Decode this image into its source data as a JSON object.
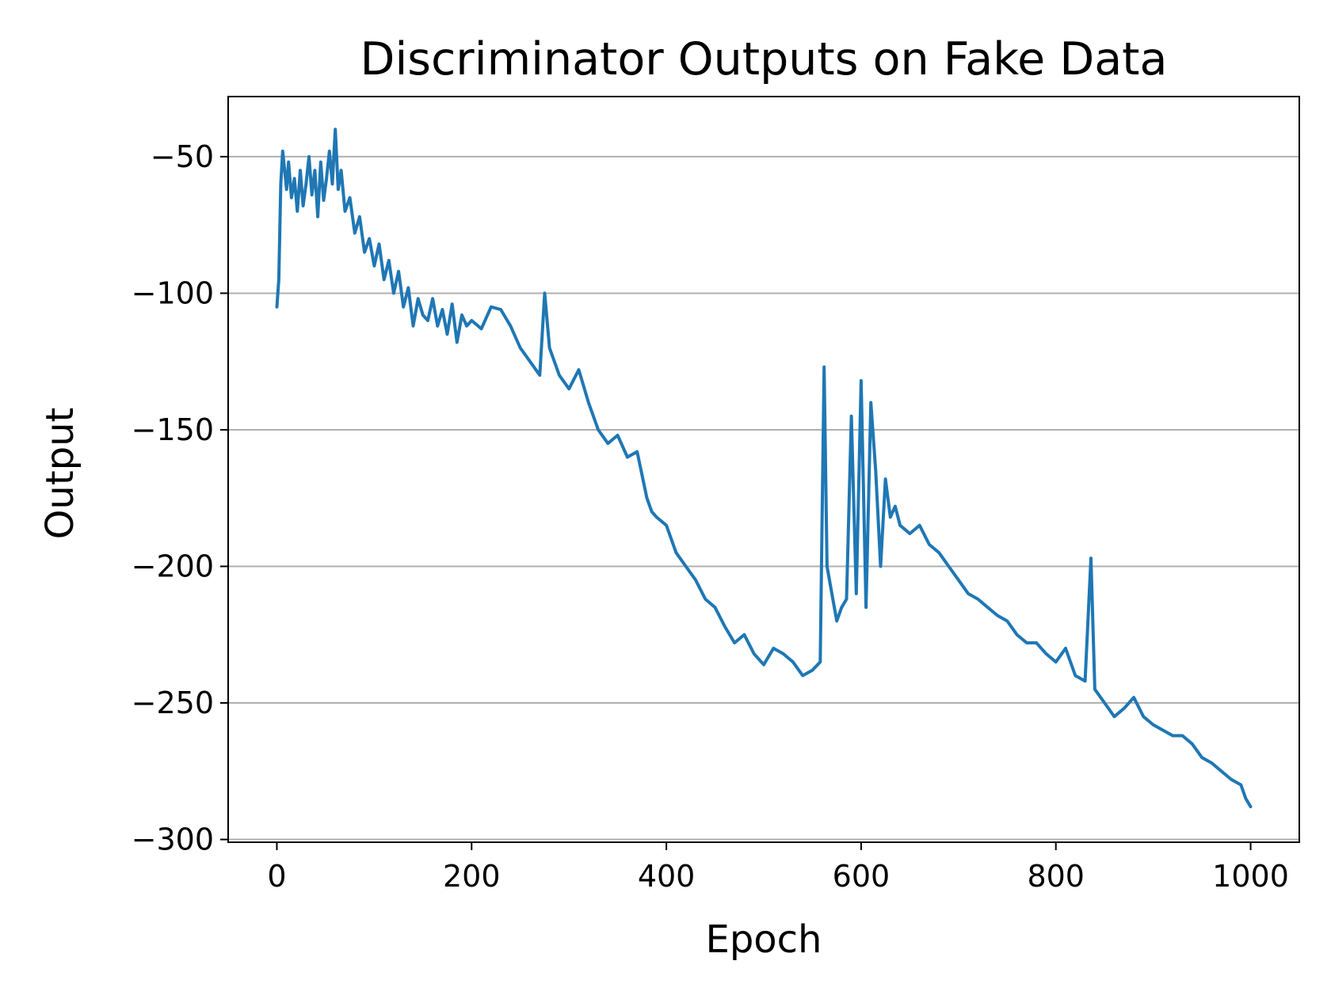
{
  "chart_data": {
    "type": "line",
    "title": "Discriminator Outputs on Fake Data",
    "xlabel": "Epoch",
    "ylabel": "Output",
    "xlim": [
      -50,
      1050
    ],
    "ylim": [
      -301,
      -28
    ],
    "xticks": [
      0,
      200,
      400,
      600,
      800,
      1000
    ],
    "xtick_labels": [
      "0",
      "200",
      "400",
      "600",
      "800",
      "1000"
    ],
    "yticks": [
      -50,
      -100,
      -150,
      -200,
      -250,
      -300
    ],
    "ytick_labels": [
      "−50",
      "−100",
      "−150",
      "−200",
      "−250",
      "−300"
    ],
    "grid": "y",
    "legend": "none",
    "colors": {
      "line": "#1f77b4",
      "grid": "#b0b0b0"
    },
    "series": [
      {
        "x": [
          0,
          2,
          4,
          6,
          8,
          10,
          12,
          15,
          18,
          21,
          24,
          27,
          30,
          33,
          36,
          39,
          42,
          45,
          48,
          51,
          54,
          57,
          60,
          63,
          66,
          70,
          75,
          80,
          85,
          90,
          95,
          100,
          105,
          110,
          115,
          120,
          125,
          130,
          135,
          140,
          145,
          150,
          155,
          160,
          165,
          170,
          175,
          180,
          185,
          190,
          195,
          200,
          210,
          220,
          230,
          240,
          250,
          260,
          270,
          275,
          280,
          290,
          300,
          310,
          320,
          330,
          340,
          350,
          360,
          370,
          380,
          385,
          390,
          400,
          410,
          420,
          430,
          440,
          450,
          460,
          470,
          480,
          490,
          500,
          510,
          520,
          530,
          540,
          550,
          558,
          562,
          565,
          570,
          575,
          580,
          585,
          590,
          595,
          600,
          605,
          610,
          615,
          620,
          625,
          630,
          635,
          640,
          650,
          660,
          670,
          680,
          690,
          700,
          710,
          720,
          730,
          740,
          750,
          760,
          770,
          780,
          790,
          800,
          810,
          820,
          830,
          836,
          840,
          850,
          860,
          870,
          880,
          890,
          900,
          910,
          920,
          930,
          940,
          950,
          960,
          970,
          980,
          990,
          995,
          1000
        ],
        "y": [
          -105,
          -95,
          -60,
          -48,
          -55,
          -62,
          -52,
          -65,
          -58,
          -70,
          -55,
          -68,
          -60,
          -50,
          -64,
          -55,
          -72,
          -52,
          -66,
          -58,
          -48,
          -60,
          -40,
          -62,
          -55,
          -70,
          -65,
          -78,
          -72,
          -85,
          -80,
          -90,
          -82,
          -95,
          -88,
          -100,
          -92,
          -105,
          -98,
          -112,
          -102,
          -108,
          -110,
          -102,
          -112,
          -106,
          -115,
          -104,
          -118,
          -108,
          -112,
          -110,
          -113,
          -105,
          -106,
          -112,
          -120,
          -125,
          -130,
          -100,
          -120,
          -130,
          -135,
          -128,
          -140,
          -150,
          -155,
          -152,
          -160,
          -158,
          -175,
          -180,
          -182,
          -185,
          -195,
          -200,
          -205,
          -212,
          -215,
          -222,
          -228,
          -225,
          -232,
          -236,
          -230,
          -232,
          -235,
          -240,
          -238,
          -235,
          -127,
          -200,
          -210,
          -220,
          -215,
          -212,
          -145,
          -210,
          -132,
          -215,
          -140,
          -165,
          -200,
          -168,
          -182,
          -178,
          -185,
          -188,
          -185,
          -192,
          -195,
          -200,
          -205,
          -210,
          -212,
          -215,
          -218,
          -220,
          -225,
          -228,
          -228,
          -232,
          -235,
          -230,
          -240,
          -242,
          -197,
          -245,
          -250,
          -255,
          -252,
          -248,
          -255,
          -258,
          -260,
          -262,
          -262,
          -265,
          -270,
          -272,
          -275,
          -278,
          -280,
          -285,
          -288
        ]
      }
    ]
  }
}
